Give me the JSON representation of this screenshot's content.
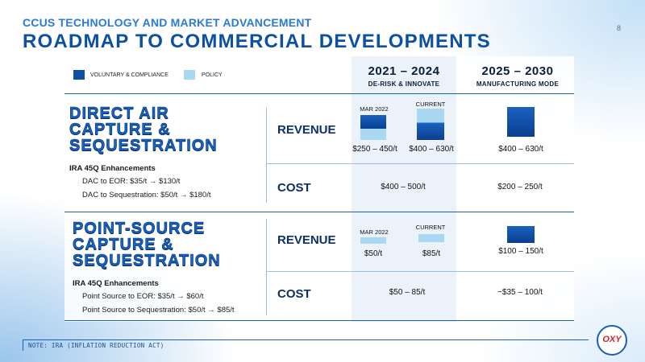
{
  "header": {
    "kicker": "CCUS TECHNOLOGY AND MARKET ADVANCEMENT",
    "title": "ROADMAP TO COMMERCIAL DEVELOPMENTS",
    "page_number": "8"
  },
  "legend": {
    "items": [
      {
        "label": "VOLUNTARY & COMPLIANCE",
        "color": "#0b4fa6"
      },
      {
        "label": "POLICY",
        "color": "#a9d8f3"
      }
    ]
  },
  "periods": [
    {
      "years": "2021 – 2024",
      "subtitle": "DE-RISK & INNOVATE"
    },
    {
      "years": "2025 – 2030",
      "subtitle": "MANUFACTURING MODE"
    }
  ],
  "sections": {
    "dac": {
      "title_lines": [
        "DIRECT AIR",
        "CAPTURE &",
        "SEQUESTRATION"
      ],
      "ira_heading": "IRA 45Q Enhancements",
      "ira_items": [
        "DAC to EOR: $35/t → $130/t",
        "DAC to Sequestration: $50/t → $180/t"
      ],
      "revenue_label": "REVENUE",
      "cost_label": "COST",
      "revenue": {
        "tag_mar2022": "MAR 2022",
        "tag_current": "CURRENT",
        "val_mar2022": "$250 – 450/t",
        "val_current": "$400 – 630/t",
        "val_future": "$400 – 630/t"
      },
      "cost": {
        "val_now": "$400 – 500/t",
        "val_future": "$200 – 250/t"
      }
    },
    "psc": {
      "title_lines": [
        "POINT-SOURCE",
        "CAPTURE &",
        "SEQUESTRATION"
      ],
      "ira_heading": "IRA 45Q Enhancements",
      "ira_items": [
        "Point Source to EOR: $35/t → $60/t",
        "Point Source to Sequestration: $50/t → $85/t"
      ],
      "revenue_label": "REVENUE",
      "cost_label": "COST",
      "revenue": {
        "tag_mar2022": "MAR 2022",
        "tag_current": "CURRENT",
        "val_mar2022": "$50/t",
        "val_current": "$85/t",
        "val_future": "$100 – 150/t"
      },
      "cost": {
        "val_now": "$50 – 85/t",
        "val_future": "~$35 – 100/t"
      }
    }
  },
  "footer": {
    "note": "NOTE: IRA (INFLATION REDUCTION ACT)",
    "logo_text": "OXY"
  }
}
